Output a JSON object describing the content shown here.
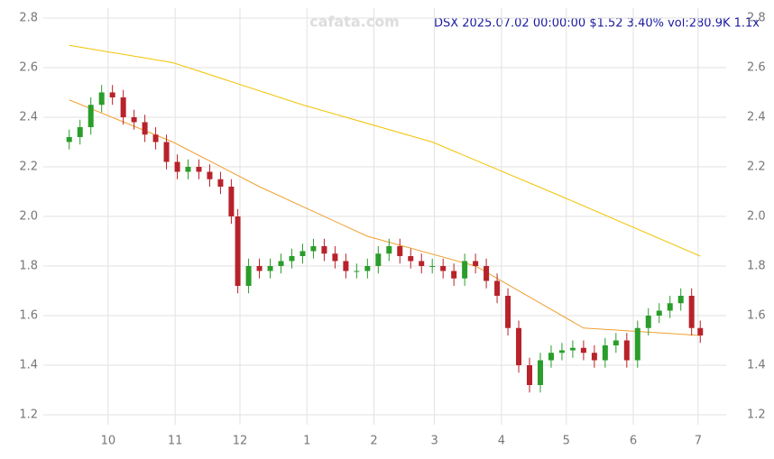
{
  "chart_data": {
    "type": "candlestick",
    "title": "DSX 2025.07.02 00:00:00 $1.52 3.40% vol:280.9K 1.1x",
    "watermark": "cafata.com",
    "x": [
      12,
      17,
      22,
      27,
      32,
      37,
      42,
      47,
      52,
      57,
      62,
      67,
      72,
      77,
      82,
      87,
      90,
      95,
      100,
      105,
      110,
      115,
      120,
      125,
      130,
      135,
      140,
      145,
      150,
      155,
      160,
      165,
      170,
      175,
      180,
      185,
      190,
      195,
      200,
      205,
      210,
      215,
      220,
      225,
      230,
      235,
      240,
      245,
      250,
      255,
      260,
      265,
      270,
      275,
      280,
      285,
      290,
      295,
      300,
      304
    ],
    "open": [
      2.3,
      2.32,
      2.36,
      2.45,
      2.5,
      2.48,
      2.4,
      2.38,
      2.33,
      2.3,
      2.22,
      2.18,
      2.2,
      2.18,
      2.15,
      2.12,
      2.0,
      1.72,
      1.8,
      1.78,
      1.8,
      1.82,
      1.84,
      1.86,
      1.88,
      1.85,
      1.82,
      1.78,
      1.78,
      1.8,
      1.85,
      1.88,
      1.84,
      1.82,
      1.8,
      1.8,
      1.78,
      1.75,
      1.82,
      1.8,
      1.74,
      1.68,
      1.55,
      1.4,
      1.32,
      1.42,
      1.45,
      1.46,
      1.47,
      1.45,
      1.42,
      1.48,
      1.5,
      1.42,
      1.55,
      1.6,
      1.62,
      1.65,
      1.68,
      1.55
    ],
    "high": [
      2.35,
      2.39,
      2.48,
      2.53,
      2.53,
      2.51,
      2.43,
      2.41,
      2.36,
      2.33,
      2.25,
      2.23,
      2.23,
      2.21,
      2.18,
      2.15,
      2.03,
      1.83,
      1.83,
      1.83,
      1.85,
      1.87,
      1.89,
      1.91,
      1.91,
      1.88,
      1.85,
      1.81,
      1.83,
      1.88,
      1.91,
      1.91,
      1.87,
      1.85,
      1.83,
      1.83,
      1.81,
      1.85,
      1.85,
      1.83,
      1.77,
      1.71,
      1.58,
      1.43,
      1.45,
      1.48,
      1.49,
      1.5,
      1.5,
      1.48,
      1.51,
      1.53,
      1.53,
      1.58,
      1.63,
      1.65,
      1.68,
      1.71,
      1.71,
      1.58
    ],
    "low": [
      2.27,
      2.29,
      2.33,
      2.42,
      2.45,
      2.37,
      2.35,
      2.3,
      2.27,
      2.19,
      2.15,
      2.15,
      2.15,
      2.12,
      2.09,
      1.97,
      1.69,
      1.69,
      1.75,
      1.75,
      1.77,
      1.79,
      1.81,
      1.83,
      1.82,
      1.79,
      1.75,
      1.75,
      1.75,
      1.77,
      1.82,
      1.81,
      1.79,
      1.77,
      1.77,
      1.75,
      1.72,
      1.72,
      1.77,
      1.71,
      1.65,
      1.52,
      1.37,
      1.29,
      1.29,
      1.39,
      1.42,
      1.43,
      1.42,
      1.39,
      1.39,
      1.45,
      1.39,
      1.39,
      1.52,
      1.57,
      1.59,
      1.62,
      1.52,
      1.49
    ],
    "close": [
      2.32,
      2.36,
      2.45,
      2.5,
      2.48,
      2.4,
      2.38,
      2.33,
      2.3,
      2.22,
      2.18,
      2.2,
      2.18,
      2.15,
      2.12,
      2.0,
      1.72,
      1.8,
      1.78,
      1.8,
      1.82,
      1.84,
      1.86,
      1.88,
      1.85,
      1.82,
      1.78,
      1.78,
      1.8,
      1.85,
      1.88,
      1.84,
      1.82,
      1.8,
      1.8,
      1.78,
      1.75,
      1.82,
      1.8,
      1.74,
      1.68,
      1.55,
      1.4,
      1.32,
      1.42,
      1.45,
      1.46,
      1.47,
      1.45,
      1.42,
      1.48,
      1.5,
      1.42,
      1.55,
      1.6,
      1.62,
      1.65,
      1.68,
      1.55,
      1.52
    ],
    "up_color": "#2a9d2a",
    "down_color": "#b8222a",
    "overlays": [
      {
        "color": "#f2c200",
        "x": [
          12,
          60,
          120,
          180,
          240,
          304
        ],
        "values": [
          2.69,
          2.62,
          2.45,
          2.3,
          2.08,
          1.84
        ]
      },
      {
        "color": "#f0a030",
        "x": [
          12,
          60,
          100,
          150,
          200,
          250,
          304
        ],
        "values": [
          2.47,
          2.3,
          2.12,
          1.92,
          1.8,
          1.55,
          1.52
        ]
      }
    ],
    "xlim": [
      0,
      316
    ],
    "xticks": [
      {
        "value": 30,
        "label": "10"
      },
      {
        "value": 61,
        "label": "11"
      },
      {
        "value": 91,
        "label": "12"
      },
      {
        "value": 122,
        "label": "1"
      },
      {
        "value": 153,
        "label": "2"
      },
      {
        "value": 181,
        "label": "3"
      },
      {
        "value": 212,
        "label": "4"
      },
      {
        "value": 242,
        "label": "5"
      },
      {
        "value": 273,
        "label": "6"
      },
      {
        "value": 303,
        "label": "7"
      }
    ],
    "ylim": [
      1.16,
      2.84
    ],
    "yticks": [
      1.2,
      1.4,
      1.6,
      1.8,
      {
        "value": 2,
        "label": "2.0"
      },
      2.2,
      2.4,
      2.6,
      2.8
    ],
    "grid": true
  }
}
